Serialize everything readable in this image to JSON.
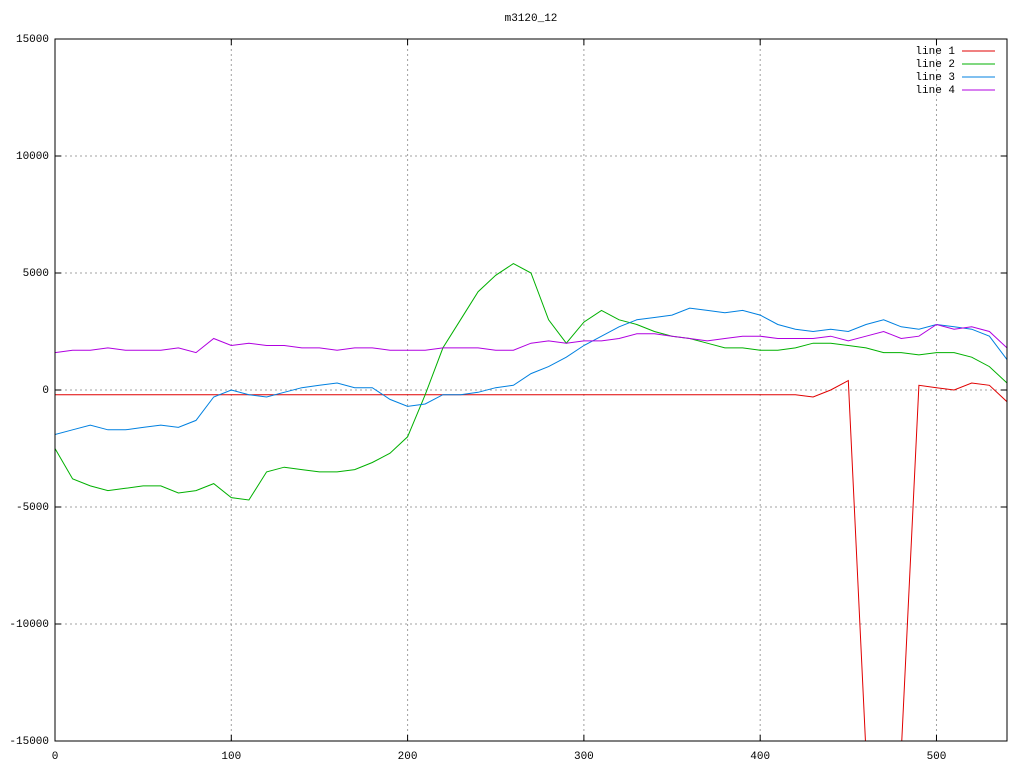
{
  "chart_data": {
    "type": "line",
    "title": "m3120_12",
    "x": [
      0,
      10,
      20,
      30,
      40,
      50,
      60,
      70,
      80,
      90,
      100,
      110,
      120,
      130,
      140,
      150,
      160,
      170,
      180,
      190,
      200,
      210,
      220,
      230,
      240,
      250,
      260,
      270,
      280,
      290,
      300,
      310,
      320,
      330,
      340,
      350,
      360,
      370,
      380,
      390,
      400,
      410,
      420,
      430,
      440,
      450,
      460,
      470,
      480,
      490,
      500,
      510,
      520,
      530,
      540
    ],
    "xlim": [
      0,
      540
    ],
    "xticks": [
      0,
      100,
      200,
      300,
      400,
      500
    ],
    "ylim": [
      -15000,
      15000
    ],
    "yticks": [
      -15000,
      -10000,
      -5000,
      0,
      5000,
      10000,
      15000
    ],
    "grid": true,
    "legend": "top-right",
    "series": [
      {
        "name": "line 1",
        "color": "#e00000",
        "values": [
          -200,
          -200,
          -200,
          -200,
          -200,
          -200,
          -200,
          -200,
          -200,
          -200,
          -200,
          -200,
          -200,
          -200,
          -200,
          -200,
          -200,
          -200,
          -200,
          -200,
          -200,
          -200,
          -200,
          -200,
          -200,
          -200,
          -200,
          -200,
          -200,
          -200,
          -200,
          -200,
          -200,
          -200,
          -200,
          -200,
          -200,
          -200,
          -200,
          -200,
          -200,
          -200,
          -200,
          -300,
          0,
          400,
          -15500,
          -15500,
          -15500,
          200,
          100,
          0,
          300,
          200,
          -500
        ]
      },
      {
        "name": "line 2",
        "color": "#00b000",
        "values": [
          -2500,
          -3800,
          -4100,
          -4300,
          -4200,
          -4100,
          -4100,
          -4400,
          -4300,
          -4000,
          -4600,
          -4700,
          -3500,
          -3300,
          -3400,
          -3500,
          -3500,
          -3400,
          -3100,
          -2700,
          -2000,
          -200,
          1800,
          3000,
          4200,
          4900,
          5400,
          5000,
          3000,
          2000,
          2900,
          3400,
          3000,
          2800,
          2500,
          2300,
          2200,
          2000,
          1800,
          1800,
          1700,
          1700,
          1800,
          2000,
          2000,
          1900,
          1800,
          1600,
          1600,
          1500,
          1600,
          1600,
          1400,
          1000,
          300
        ]
      },
      {
        "name": "line 3",
        "color": "#0080e0",
        "values": [
          -1900,
          -1700,
          -1500,
          -1700,
          -1700,
          -1600,
          -1500,
          -1600,
          -1300,
          -300,
          0,
          -200,
          -300,
          -100,
          100,
          200,
          300,
          100,
          100,
          -400,
          -700,
          -600,
          -200,
          -200,
          -100,
          100,
          200,
          700,
          1000,
          1400,
          1900,
          2300,
          2700,
          3000,
          3100,
          3200,
          3500,
          3400,
          3300,
          3400,
          3200,
          2800,
          2600,
          2500,
          2600,
          2500,
          2800,
          3000,
          2700,
          2600,
          2800,
          2700,
          2600,
          2300,
          1300
        ]
      },
      {
        "name": "line 4",
        "color": "#b000e0",
        "values": [
          1600,
          1700,
          1700,
          1800,
          1700,
          1700,
          1700,
          1800,
          1600,
          2200,
          1900,
          2000,
          1900,
          1900,
          1800,
          1800,
          1700,
          1800,
          1800,
          1700,
          1700,
          1700,
          1800,
          1800,
          1800,
          1700,
          1700,
          2000,
          2100,
          2000,
          2100,
          2100,
          2200,
          2400,
          2400,
          2300,
          2200,
          2100,
          2200,
          2300,
          2300,
          2200,
          2200,
          2200,
          2300,
          2100,
          2300,
          2500,
          2200,
          2300,
          2800,
          2600,
          2700,
          2500,
          1800
        ]
      }
    ]
  }
}
